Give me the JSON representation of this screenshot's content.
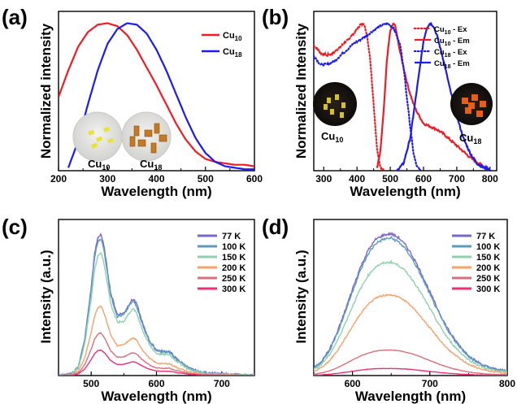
{
  "chart_data": [
    {
      "panel": "(a)",
      "type": "line",
      "xlabel": "Wavelength (nm)",
      "ylabel": "Normalized intensity",
      "xlim": [
        200,
        600
      ],
      "xticks": [
        200,
        300,
        400,
        500,
        600
      ],
      "legend_position": "top-right",
      "series": [
        {
          "name": "Cu10",
          "name_main": "Cu",
          "name_sub": "10",
          "color": "#ee1c25",
          "x": [
            200,
            220,
            240,
            260,
            280,
            300,
            320,
            340,
            360,
            380,
            400,
            420,
            440,
            460,
            480,
            500,
            520,
            540,
            560,
            580,
            600
          ],
          "y": [
            0.5,
            0.68,
            0.84,
            0.94,
            0.99,
            1.0,
            0.98,
            0.92,
            0.82,
            0.7,
            0.58,
            0.45,
            0.32,
            0.21,
            0.13,
            0.08,
            0.06,
            0.05,
            0.04,
            0.04,
            0.03
          ]
        },
        {
          "name": "Cu18",
          "name_main": "Cu",
          "name_sub": "18",
          "color": "#1c1cf0",
          "x": [
            220,
            240,
            260,
            280,
            300,
            320,
            340,
            360,
            380,
            400,
            420,
            440,
            460,
            480,
            500,
            520,
            540,
            560,
            580,
            600
          ],
          "y": [
            0.02,
            0.2,
            0.45,
            0.68,
            0.86,
            0.96,
            1.0,
            0.99,
            0.93,
            0.82,
            0.68,
            0.52,
            0.36,
            0.22,
            0.12,
            0.06,
            0.03,
            0.02,
            0.01,
            0.01
          ]
        }
      ],
      "inset_labels": [
        {
          "main": "Cu",
          "sub": "10"
        },
        {
          "main": "Cu",
          "sub": "18"
        }
      ]
    },
    {
      "panel": "(b)",
      "type": "line",
      "xlabel": "Wavelength (nm)",
      "ylabel": "Normalized Intensity",
      "xlim": [
        270,
        820
      ],
      "xticks": [
        300,
        400,
        500,
        600,
        700,
        800
      ],
      "legend_position": "top-right",
      "series": [
        {
          "name": "Cu10 - Ex",
          "name_main": "Cu",
          "name_sub": "10",
          "name_suffix": " - Ex",
          "color": "#ee1c25",
          "style": "dotted",
          "x": [
            270,
            290,
            310,
            330,
            350,
            370,
            390,
            410,
            420,
            430,
            440,
            450,
            460,
            470,
            480
          ],
          "y": [
            0.85,
            0.8,
            0.78,
            0.8,
            0.84,
            0.88,
            0.93,
            0.99,
            1.0,
            0.92,
            0.75,
            0.45,
            0.15,
            0.03,
            0.0
          ]
        },
        {
          "name": "Cu10 - Em",
          "name_main": "Cu",
          "name_sub": "10",
          "name_suffix": " - Em",
          "color": "#ee1c25",
          "style": "solid",
          "x": [
            460,
            470,
            480,
            490,
            500,
            510,
            515,
            520,
            530,
            540,
            550,
            560,
            570,
            580,
            600,
            620,
            640,
            660,
            680,
            700,
            720,
            740,
            760,
            780,
            800
          ],
          "y": [
            0.02,
            0.12,
            0.4,
            0.75,
            0.95,
            1.0,
            0.98,
            0.92,
            0.8,
            0.7,
            0.6,
            0.52,
            0.45,
            0.4,
            0.32,
            0.3,
            0.28,
            0.25,
            0.21,
            0.17,
            0.13,
            0.09,
            0.06,
            0.03,
            0.01
          ]
        },
        {
          "name": "Cu18 - Ex",
          "name_main": "Cu",
          "name_sub": "18",
          "name_suffix": " - Ex",
          "color": "#1c1cf0",
          "style": "dotted",
          "x": [
            270,
            290,
            310,
            330,
            350,
            370,
            390,
            410,
            430,
            450,
            470,
            490,
            510,
            530,
            540,
            550,
            560,
            570,
            580,
            590
          ],
          "y": [
            0.78,
            0.72,
            0.72,
            0.74,
            0.78,
            0.82,
            0.86,
            0.89,
            0.92,
            0.95,
            0.98,
            1.0,
            0.97,
            0.85,
            0.7,
            0.5,
            0.3,
            0.12,
            0.03,
            0.0
          ]
        },
        {
          "name": "Cu18 - Em",
          "name_main": "Cu",
          "name_sub": "18",
          "name_suffix": " - Em",
          "color": "#1c1cf0",
          "style": "solid",
          "x": [
            520,
            540,
            560,
            580,
            600,
            610,
            620,
            630,
            640,
            660,
            680,
            700,
            720,
            740,
            760,
            780,
            800
          ],
          "y": [
            0.0,
            0.05,
            0.22,
            0.55,
            0.88,
            0.97,
            1.0,
            0.98,
            0.92,
            0.75,
            0.55,
            0.37,
            0.22,
            0.12,
            0.05,
            0.02,
            0.01
          ]
        }
      ],
      "inset_labels": [
        {
          "main": "Cu",
          "sub": "10"
        },
        {
          "main": "Cu",
          "sub": "18"
        }
      ]
    },
    {
      "panel": "(c)",
      "type": "line",
      "xlabel": "Wavelength (nm)",
      "ylabel": "Intensity (a.u.)",
      "xlim": [
        450,
        750
      ],
      "xticks": [
        500,
        600,
        700
      ],
      "ylim": [
        0,
        1.1
      ],
      "legend_position": "top-right",
      "x": [
        450,
        470,
        480,
        490,
        500,
        505,
        510,
        515,
        520,
        530,
        540,
        550,
        560,
        565,
        570,
        580,
        590,
        600,
        610,
        620,
        630,
        650,
        670,
        700,
        750
      ],
      "shape": [
        0.0,
        0.01,
        0.06,
        0.25,
        0.62,
        0.85,
        0.97,
        1.0,
        0.9,
        0.58,
        0.43,
        0.44,
        0.52,
        0.54,
        0.5,
        0.35,
        0.24,
        0.18,
        0.17,
        0.17,
        0.12,
        0.05,
        0.02,
        0.01,
        0.0
      ],
      "series": [
        {
          "name": "77 K",
          "color": "#7b68c6",
          "scale": 1.0
        },
        {
          "name": "100 K",
          "color": "#5a9bc2",
          "scale": 0.97
        },
        {
          "name": "150 K",
          "color": "#8fd0b0",
          "scale": 0.87
        },
        {
          "name": "200 K",
          "color": "#f2a26b",
          "scale": 0.49
        },
        {
          "name": "250 K",
          "color": "#d9707d",
          "scale": 0.3
        },
        {
          "name": "300 K",
          "color": "#ee2f7a",
          "scale": 0.18
        }
      ]
    },
    {
      "panel": "(d)",
      "type": "line",
      "xlabel": "Wavelength (nm)",
      "ylabel": "Intensity (a.u.)",
      "xlim": [
        550,
        800
      ],
      "xticks": [
        600,
        700,
        800
      ],
      "ylim": [
        0,
        1.1
      ],
      "legend_position": "top-right",
      "x": [
        550,
        560,
        570,
        580,
        590,
        600,
        610,
        620,
        630,
        640,
        650,
        660,
        670,
        680,
        690,
        700,
        710,
        720,
        730,
        740,
        750,
        760,
        770,
        780,
        790,
        800
      ],
      "shape": [
        0.05,
        0.1,
        0.18,
        0.3,
        0.45,
        0.61,
        0.76,
        0.88,
        0.96,
        0.99,
        1.0,
        0.97,
        0.91,
        0.82,
        0.71,
        0.59,
        0.47,
        0.36,
        0.27,
        0.2,
        0.14,
        0.1,
        0.07,
        0.05,
        0.04,
        0.03
      ],
      "series": [
        {
          "name": "77 K",
          "color": "#7b68c6",
          "scale": 1.0
        },
        {
          "name": "100 K",
          "color": "#5a9bc2",
          "scale": 0.97
        },
        {
          "name": "150 K",
          "color": "#8fd0b0",
          "scale": 0.8
        },
        {
          "name": "200 K",
          "color": "#f2a26b",
          "scale": 0.57
        },
        {
          "name": "250 K",
          "color": "#d9707d",
          "scale": 0.18
        },
        {
          "name": "300 K",
          "color": "#ee2f7a",
          "scale": 0.05
        }
      ]
    }
  ]
}
